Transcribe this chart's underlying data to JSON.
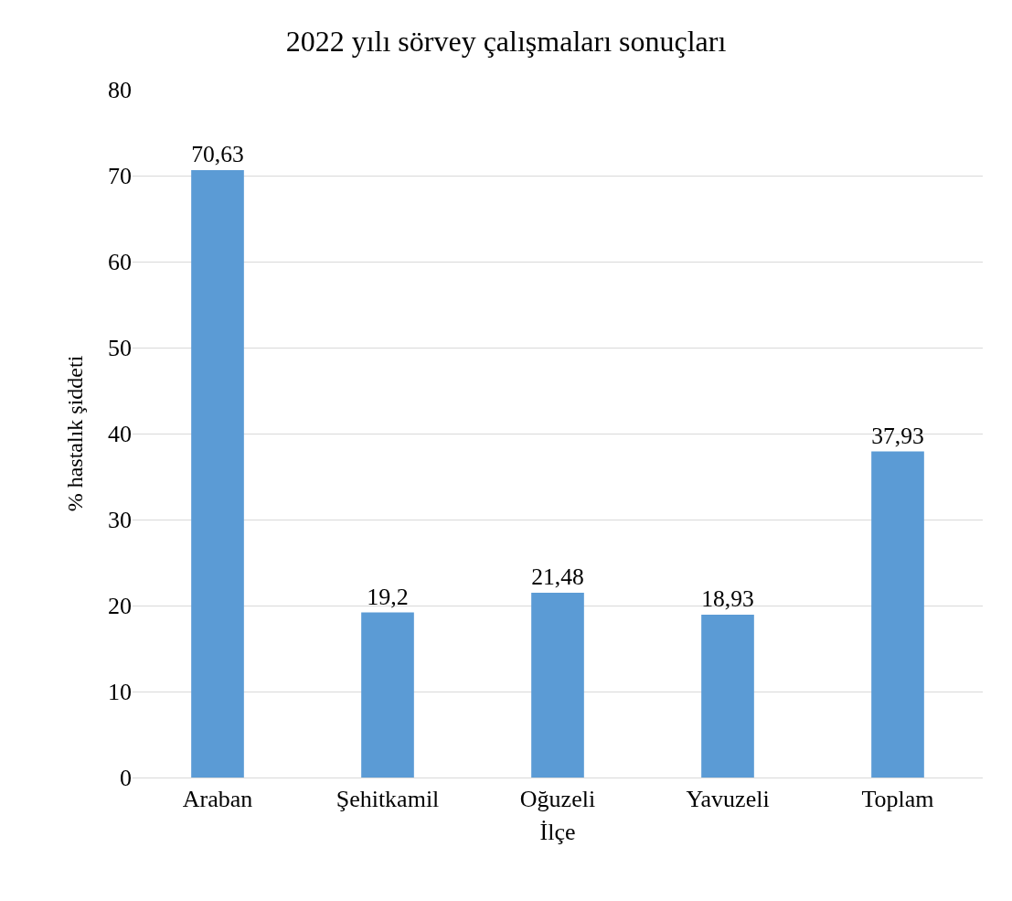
{
  "chart_data": {
    "type": "bar",
    "title": "2022 yılı sörvey çalışmaları sonuçları",
    "xlabel": "İlçe",
    "ylabel": "% hastalık şiddeti",
    "categories": [
      "Araban",
      "Şehitkamil",
      "Oğuzeli",
      "Yavuzeli",
      "Toplam"
    ],
    "values": [
      70.63,
      19.2,
      21.48,
      18.93,
      37.93
    ],
    "value_labels": [
      "70,63",
      "19,2",
      "21,48",
      "18,93",
      "37,93"
    ],
    "color": "#5b9bd5",
    "ylim": [
      0,
      80
    ],
    "yticks": [
      0,
      10,
      20,
      30,
      40,
      50,
      60,
      70,
      80
    ],
    "grid": "y",
    "legend": false
  }
}
